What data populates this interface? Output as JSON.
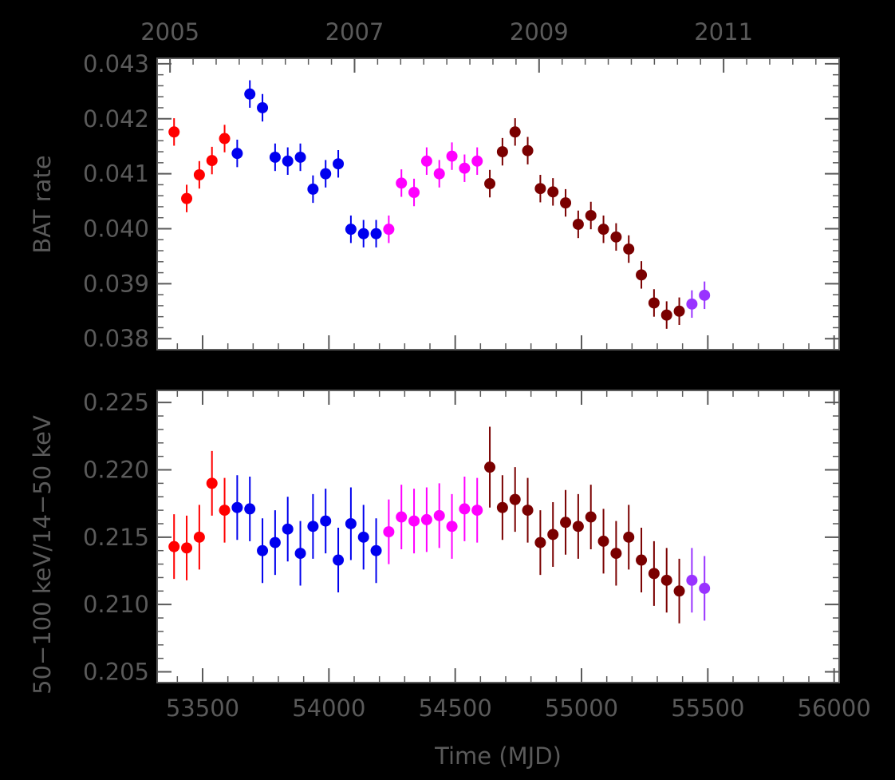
{
  "chart_data": [
    {
      "panel": "top",
      "type": "scatter",
      "ylabel": "BAT rate",
      "ylim": [
        0.0378,
        0.0431
      ],
      "xlim": [
        53320,
        56020
      ],
      "top_axis_years": [
        "2005",
        "2007",
        "2009",
        "2011"
      ],
      "y_tick_labels": [
        "0.038",
        "0.039",
        "0.040",
        "0.041",
        "0.042",
        "0.043"
      ],
      "grid": false,
      "series": [
        {
          "color": "#ff0000",
          "x": [
            53387,
            53437,
            53487,
            53537,
            53587
          ],
          "y": [
            0.04176,
            0.04055,
            0.04098,
            0.04124,
            0.04164
          ],
          "err": [
            0.00025,
            0.00025,
            0.00025,
            0.00025,
            0.00025
          ]
        },
        {
          "color": "#0000ee",
          "x": [
            53637,
            53687,
            53737,
            53787,
            53837,
            53887,
            53937,
            53987,
            54037,
            54087,
            54137,
            54187
          ],
          "y": [
            0.04137,
            0.04245,
            0.0422,
            0.0413,
            0.04123,
            0.0413,
            0.04072,
            0.041,
            0.04118,
            0.03999,
            0.03991,
            0.03991
          ],
          "err": [
            0.00025,
            0.00025,
            0.00025,
            0.00025,
            0.00025,
            0.00025,
            0.00025,
            0.00025,
            0.00025,
            0.00025,
            0.00025,
            0.00025
          ]
        },
        {
          "color": "#ff00ff",
          "x": [
            54237,
            54287,
            54337,
            54387,
            54437,
            54487,
            54537,
            54587
          ],
          "y": [
            0.03999,
            0.04083,
            0.04066,
            0.04123,
            0.041,
            0.04132,
            0.0411,
            0.04123
          ],
          "err": [
            0.00025,
            0.00025,
            0.00025,
            0.00025,
            0.00025,
            0.00025,
            0.00025,
            0.00025
          ]
        },
        {
          "color": "#7a0000",
          "x": [
            54637,
            54687,
            54737,
            54787,
            54837,
            54887,
            54937,
            54987,
            55037,
            55087,
            55137,
            55187,
            55237,
            55287,
            55337,
            55387
          ],
          "y": [
            0.04082,
            0.0414,
            0.04176,
            0.04142,
            0.04073,
            0.04067,
            0.04047,
            0.04008,
            0.04024,
            0.03999,
            0.03985,
            0.03963,
            0.03916,
            0.03865,
            0.03843,
            0.0385
          ],
          "err": [
            0.00025,
            0.00025,
            0.00025,
            0.00025,
            0.00025,
            0.00025,
            0.00025,
            0.00025,
            0.00025,
            0.00025,
            0.00025,
            0.00025,
            0.00025,
            0.00025,
            0.00025,
            0.00025
          ]
        },
        {
          "color": "#9933ff",
          "x": [
            55437,
            55487
          ],
          "y": [
            0.03863,
            0.03879
          ],
          "err": [
            0.00025,
            0.00025
          ]
        }
      ]
    },
    {
      "panel": "bottom",
      "type": "scatter",
      "ylabel": "50−100 keV/14−50 keV",
      "xlabel": "Time (MJD)",
      "ylim": [
        0.2042,
        0.2259
      ],
      "xlim": [
        53320,
        56020
      ],
      "y_tick_labels": [
        "0.205",
        "0.210",
        "0.215",
        "0.220",
        "0.225"
      ],
      "x_tick_labels": [
        "53500",
        "54000",
        "54500",
        "55000",
        "55500",
        "56000"
      ],
      "grid": false,
      "series": [
        {
          "color": "#ff0000",
          "x": [
            53387,
            53437,
            53487,
            53537,
            53587
          ],
          "y": [
            0.2143,
            0.2142,
            0.215,
            0.219,
            0.217
          ],
          "err": [
            0.0024,
            0.0024,
            0.0024,
            0.0024,
            0.0024
          ]
        },
        {
          "color": "#0000ee",
          "x": [
            53637,
            53687,
            53737,
            53787,
            53837,
            53887,
            53937,
            53987,
            54037,
            54087,
            54137,
            54187
          ],
          "y": [
            0.2172,
            0.2171,
            0.214,
            0.2146,
            0.2156,
            0.2138,
            0.2158,
            0.2162,
            0.2133,
            0.216,
            0.215,
            0.214
          ],
          "err": [
            0.0024,
            0.0024,
            0.0024,
            0.0024,
            0.0024,
            0.0024,
            0.0024,
            0.0024,
            0.0024,
            0.0027,
            0.0024,
            0.0024
          ]
        },
        {
          "color": "#ff00ff",
          "x": [
            54237,
            54287,
            54337,
            54387,
            54437,
            54487,
            54537,
            54587
          ],
          "y": [
            0.2154,
            0.2165,
            0.2162,
            0.2163,
            0.2166,
            0.2158,
            0.2171,
            0.217
          ],
          "err": [
            0.0024,
            0.0024,
            0.0024,
            0.0024,
            0.0024,
            0.0024,
            0.0024,
            0.0024
          ]
        },
        {
          "color": "#7a0000",
          "x": [
            54637,
            54687,
            54737,
            54787,
            54837,
            54887,
            54937,
            54987,
            55037,
            55087,
            55137,
            55187,
            55237,
            55287,
            55337,
            55387
          ],
          "y": [
            0.2202,
            0.2172,
            0.2178,
            0.217,
            0.2146,
            0.2152,
            0.2161,
            0.2158,
            0.2165,
            0.2147,
            0.2138,
            0.215,
            0.2133,
            0.2123,
            0.2118,
            0.211
          ],
          "err": [
            0.003,
            0.0024,
            0.0024,
            0.0024,
            0.0024,
            0.0024,
            0.0024,
            0.0024,
            0.0024,
            0.0024,
            0.0024,
            0.0024,
            0.0024,
            0.0024,
            0.0024,
            0.0024
          ]
        },
        {
          "color": "#9933ff",
          "x": [
            55437,
            55487
          ],
          "y": [
            0.2118,
            0.2112
          ],
          "err": [
            0.0024,
            0.0024
          ]
        }
      ]
    }
  ]
}
